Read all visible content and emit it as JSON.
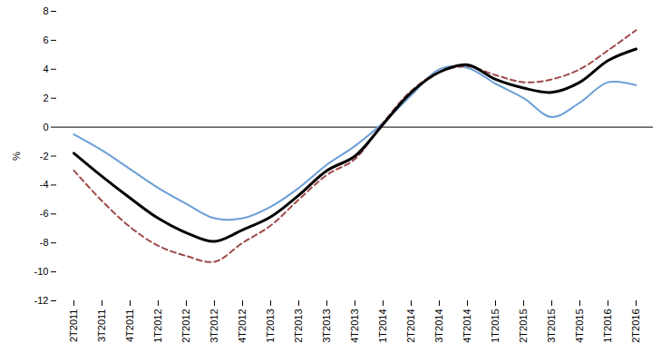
{
  "chart_data": {
    "type": "line",
    "y_label": "%",
    "categories": [
      "2T2011",
      "3T2011",
      "4T2011",
      "1T2012",
      "2T2012",
      "3T2012",
      "4T2012",
      "1T2013",
      "2T2013",
      "3T2013",
      "4T2013",
      "1T2014",
      "2T2014",
      "3T2014",
      "4T2014",
      "1T2015",
      "2T2015",
      "3T2015",
      "4T2015",
      "1T2016",
      "2T2016"
    ],
    "series": [
      {
        "color": "#6b9fd6",
        "line_style": "solid",
        "values": [
          -0.5,
          -1.6,
          -2.9,
          -4.2,
          -5.3,
          -6.3,
          -6.3,
          -5.5,
          -4.2,
          -2.6,
          -1.3,
          0.3,
          2.2,
          4.0,
          4.1,
          3.0,
          2.0,
          0.7,
          1.7,
          3.1,
          2.9
        ]
      },
      {
        "color": "#9e4a4a",
        "line_style": "dashed",
        "values": [
          -3.0,
          -5.1,
          -6.9,
          -8.2,
          -8.9,
          -9.3,
          -8.0,
          -6.8,
          -5.0,
          -3.3,
          -2.2,
          0.3,
          2.5,
          3.8,
          4.2,
          3.6,
          3.1,
          3.3,
          4.0,
          5.3,
          6.7
        ]
      },
      {
        "color": "#000000",
        "line_style": "solid",
        "values": [
          -1.8,
          -3.4,
          -4.9,
          -6.3,
          -7.3,
          -7.9,
          -7.1,
          -6.2,
          -4.7,
          -3.0,
          -2.0,
          0.2,
          2.4,
          3.8,
          4.3,
          3.3,
          2.7,
          2.4,
          3.1,
          4.6,
          5.4
        ]
      }
    ],
    "ylim": [
      -12,
      8
    ],
    "yticks": [
      -12,
      -10,
      -8,
      -6,
      -4,
      -2,
      0,
      2,
      4,
      6,
      8
    ],
    "grid": false
  }
}
